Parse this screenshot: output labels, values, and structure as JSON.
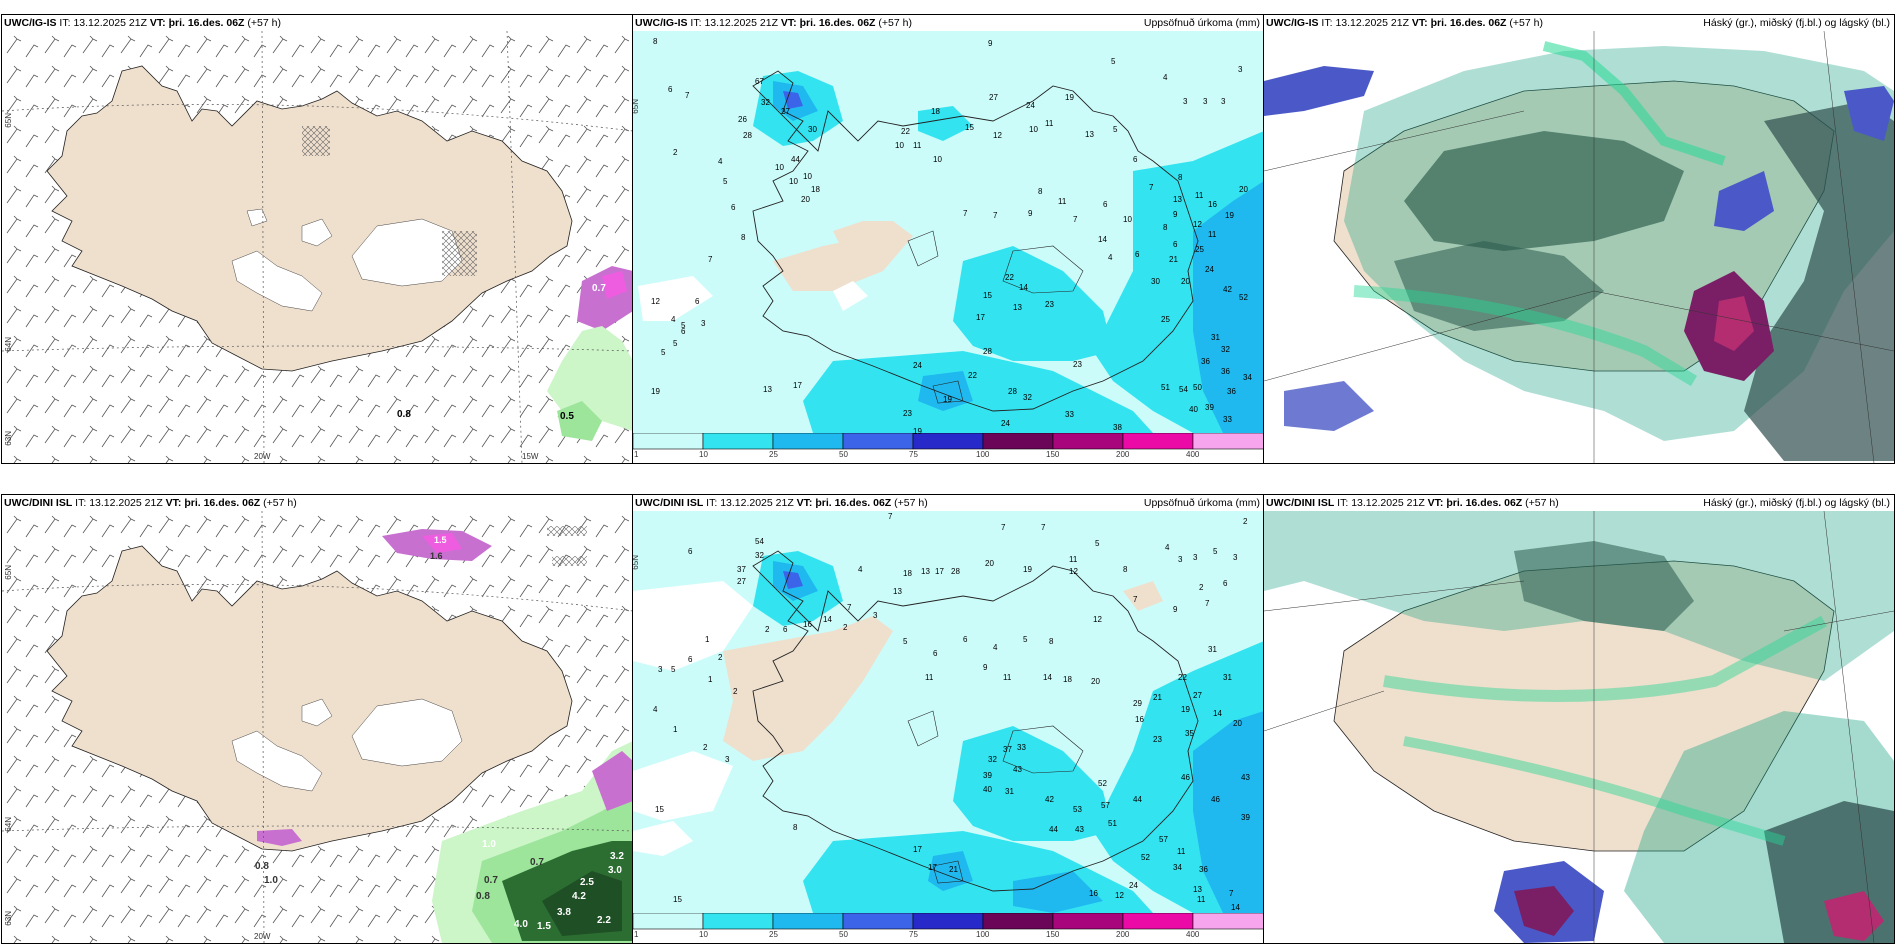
{
  "panels": {
    "p1": {
      "model": "UWC/IG-IS",
      "it_label": "IT:",
      "it": "13.12.2025 21Z",
      "vt_label": "VT:",
      "vt": "þri. 16.des. 06Z",
      "lead": "(+57 h)",
      "right": "",
      "lat_labels": [
        "65N",
        "64N",
        "63N"
      ],
      "lon_labels": [
        "20W",
        "15W"
      ],
      "values": [
        "0.8",
        "0.5",
        "0.7"
      ]
    },
    "p2": {
      "model": "UWC/IG-IS",
      "it_label": "IT:",
      "it": "13.12.2025 21Z",
      "vt_label": "VT:",
      "vt": "þri. 16.des. 06Z",
      "lead": "(+57 h)",
      "right": "Uppsöfnuð úrkoma (mm)",
      "lat_labels": [
        "65N"
      ]
    },
    "p3": {
      "model": "UWC/IG-IS",
      "it_label": "IT:",
      "it": "13.12.2025 21Z",
      "vt_label": "VT:",
      "vt": "þri. 16.des. 06Z",
      "lead": "(+57 h)",
      "right": "Háský (gr.), miðský (fj.bl.) og lágský (bl.)"
    },
    "p4": {
      "model": "UWC/DINI ISL",
      "it_label": "IT:",
      "it": "13.12.2025 21Z",
      "vt_label": "VT:",
      "vt": "þri. 16.des. 06Z",
      "lead": "(+57 h)",
      "right": "",
      "lat_labels": [
        "65N",
        "64N",
        "63N"
      ],
      "lon_labels": [
        "20W"
      ],
      "values": [
        "1.5",
        "1.6",
        "0.8",
        "1.0",
        "0.7",
        "0.7",
        "0.8",
        "1.0",
        "3.2",
        "3.0",
        "2.5",
        "4.2",
        "3.8",
        "2.2",
        "4.0",
        "1.5"
      ]
    },
    "p5": {
      "model": "UWC/DINI ISL",
      "it_label": "IT:",
      "it": "13.12.2025 21Z",
      "vt_label": "VT:",
      "vt": "þri. 16.des. 06Z",
      "lead": "(+57 h)",
      "right": "Uppsöfnuð úrkoma (mm)",
      "lat_labels": [
        "65N"
      ]
    },
    "p6": {
      "model": "UWC/DINI ISL",
      "it_label": "IT:",
      "it": "13.12.2025 21Z",
      "vt_label": "VT:",
      "vt": "þri. 16.des. 06Z",
      "lead": "(+57 h)",
      "right": "Háský (gr.), miðský (fj.bl.) og lágský (bl.)"
    }
  },
  "colorbar": {
    "ticks": [
      "1",
      "10",
      "25",
      "50",
      "75",
      "100",
      "150",
      "200",
      "400"
    ],
    "colors": [
      "#ccfcfa",
      "#33e4f0",
      "#1fb9f0",
      "#3c64e8",
      "#2829c9",
      "#6b0558",
      "#a8057c",
      "#ec0aa7",
      "#f7a6ee"
    ]
  },
  "precip_labels": {
    "p2": [
      "8",
      "9",
      "7",
      "6",
      "2",
      "4",
      "5",
      "67",
      "32",
      "27",
      "26",
      "28",
      "30",
      "44",
      "10",
      "10",
      "10",
      "20",
      "18",
      "6",
      "8",
      "7",
      "4",
      "6",
      "5",
      "12",
      "6",
      "3",
      "5",
      "5",
      "19",
      "13",
      "17",
      "22",
      "10",
      "11",
      "10",
      "18",
      "15",
      "27",
      "12",
      "24",
      "19",
      "11",
      "10",
      "13",
      "5",
      "4",
      "3",
      "3",
      "3",
      "3",
      "5",
      "6",
      "8",
      "7",
      "6",
      "8",
      "11",
      "13",
      "9",
      "6",
      "6",
      "4",
      "7",
      "9",
      "7",
      "7",
      "11",
      "16",
      "19",
      "20",
      "10",
      "8",
      "12",
      "11",
      "14",
      "21",
      "25",
      "24",
      "30",
      "20",
      "22",
      "14",
      "15",
      "13",
      "17",
      "28",
      "22",
      "24",
      "19",
      "23",
      "23",
      "42",
      "52",
      "25",
      "31",
      "32",
      "36",
      "36",
      "34",
      "51",
      "54",
      "50",
      "40",
      "39",
      "36",
      "33",
      "23",
      "19",
      "28",
      "32",
      "33",
      "38",
      "24"
    ],
    "p5": [
      "7",
      "7",
      "6",
      "7",
      "5",
      "54",
      "32",
      "37",
      "27",
      "4",
      "13",
      "18",
      "13",
      "17",
      "28",
      "20",
      "19",
      "11",
      "12",
      "8",
      "4",
      "3",
      "2",
      "3",
      "5",
      "3",
      "6",
      "7",
      "9",
      "7",
      "2",
      "7",
      "3",
      "2",
      "14",
      "16",
      "6",
      "2",
      "1",
      "2",
      "1",
      "2",
      "3",
      "5",
      "6",
      "4",
      "5",
      "6",
      "6",
      "4",
      "5",
      "8",
      "12",
      "1",
      "2",
      "3",
      "11",
      "9",
      "11",
      "14",
      "18",
      "20",
      "29",
      "21",
      "22",
      "31",
      "31",
      "27",
      "19",
      "16",
      "14",
      "20",
      "23",
      "35",
      "37",
      "33",
      "32",
      "39",
      "43",
      "40",
      "31",
      "42",
      "52",
      "57",
      "53",
      "51",
      "44",
      "46",
      "43",
      "44",
      "43",
      "46",
      "57",
      "52",
      "39",
      "34",
      "36",
      "24",
      "12",
      "16",
      "13",
      "7",
      "11",
      "11",
      "14",
      "17",
      "21",
      "17",
      "8",
      "15",
      "15"
    ]
  }
}
